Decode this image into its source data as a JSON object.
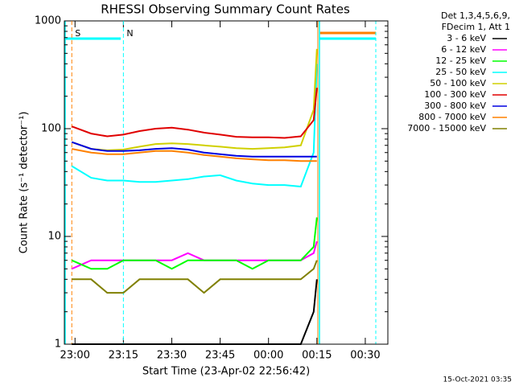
{
  "chart_data": {
    "type": "line",
    "title": "RHESSI Observing Summary Count Rates",
    "x_label": "Start Time (23-Apr-02 22:56:42)",
    "y_label": "Count Rate (s⁻¹ detector⁻¹)",
    "legend_header": [
      "Det 1,3,4,5,6,9,",
      "FDecim 1, Att 1"
    ],
    "footer": "15-Oct-2021 03:35",
    "log_y": true,
    "xlim": [
      "22:56:42",
      "00:37:00"
    ],
    "ylim": [
      1,
      1000
    ],
    "yticks": [
      1,
      10,
      100,
      1000
    ],
    "xticks": [
      "23:00",
      "23:15",
      "23:30",
      "23:45",
      "00:00",
      "00:15",
      "00:30"
    ],
    "annotations": [
      {
        "label": "S",
        "x": "22:59",
        "color": "#ff8000"
      },
      {
        "label": "N",
        "x": "23:15",
        "color": "#00ffff"
      }
    ],
    "x": [
      "22:59",
      "23:05",
      "23:10",
      "23:15",
      "23:20",
      "23:25",
      "23:30",
      "23:35",
      "23:40",
      "23:45",
      "23:50",
      "23:55",
      "00:00",
      "00:05",
      "00:10",
      "00:14",
      "00:15"
    ],
    "series": [
      {
        "name": "3 - 6 keV",
        "color": "#000000",
        "values": [
          1,
          1,
          1,
          1,
          1,
          1,
          1,
          1,
          1,
          1,
          1,
          1,
          1,
          1,
          1,
          2,
          4
        ]
      },
      {
        "name": "6 - 12 keV",
        "color": "#ff00ff",
        "values": [
          5,
          6,
          6,
          6,
          6,
          6,
          6,
          7,
          6,
          6,
          6,
          6,
          6,
          6,
          6,
          7,
          9
        ]
      },
      {
        "name": "12 - 25 keV",
        "color": "#00ff00",
        "values": [
          6,
          5,
          5,
          6,
          6,
          6,
          5,
          6,
          6,
          6,
          6,
          5,
          6,
          6,
          6,
          8,
          15
        ]
      },
      {
        "name": "25 - 50 keV",
        "color": "#00ffff",
        "values": [
          45,
          35,
          33,
          33,
          32,
          32,
          33,
          34,
          36,
          37,
          33,
          31,
          30,
          30,
          29,
          60,
          400
        ]
      },
      {
        "name": "50 - 100 keV",
        "color": "#d0d000",
        "values": [
          75,
          65,
          63,
          64,
          68,
          72,
          73,
          72,
          70,
          68,
          66,
          65,
          66,
          67,
          70,
          150,
          550
        ]
      },
      {
        "name": "100 - 300 keV",
        "color": "#e00000",
        "values": [
          105,
          90,
          85,
          88,
          95,
          100,
          102,
          98,
          92,
          88,
          84,
          83,
          83,
          82,
          85,
          120,
          240
        ]
      },
      {
        "name": "300 - 800 keV",
        "color": "#0000e0",
        "values": [
          75,
          65,
          62,
          62,
          63,
          65,
          66,
          64,
          60,
          58,
          56,
          55,
          55,
          55,
          55,
          55,
          55
        ]
      },
      {
        "name": "800 - 7000 keV",
        "color": "#ff8000",
        "values": [
          65,
          60,
          58,
          58,
          60,
          62,
          62,
          60,
          57,
          55,
          53,
          52,
          51,
          51,
          50,
          50,
          50
        ]
      },
      {
        "name": "7000 - 15000 keV",
        "color": "#808000",
        "values": [
          4,
          4,
          3,
          3,
          4,
          4,
          4,
          4,
          3,
          4,
          4,
          4,
          4,
          4,
          4,
          5,
          6
        ]
      }
    ]
  }
}
